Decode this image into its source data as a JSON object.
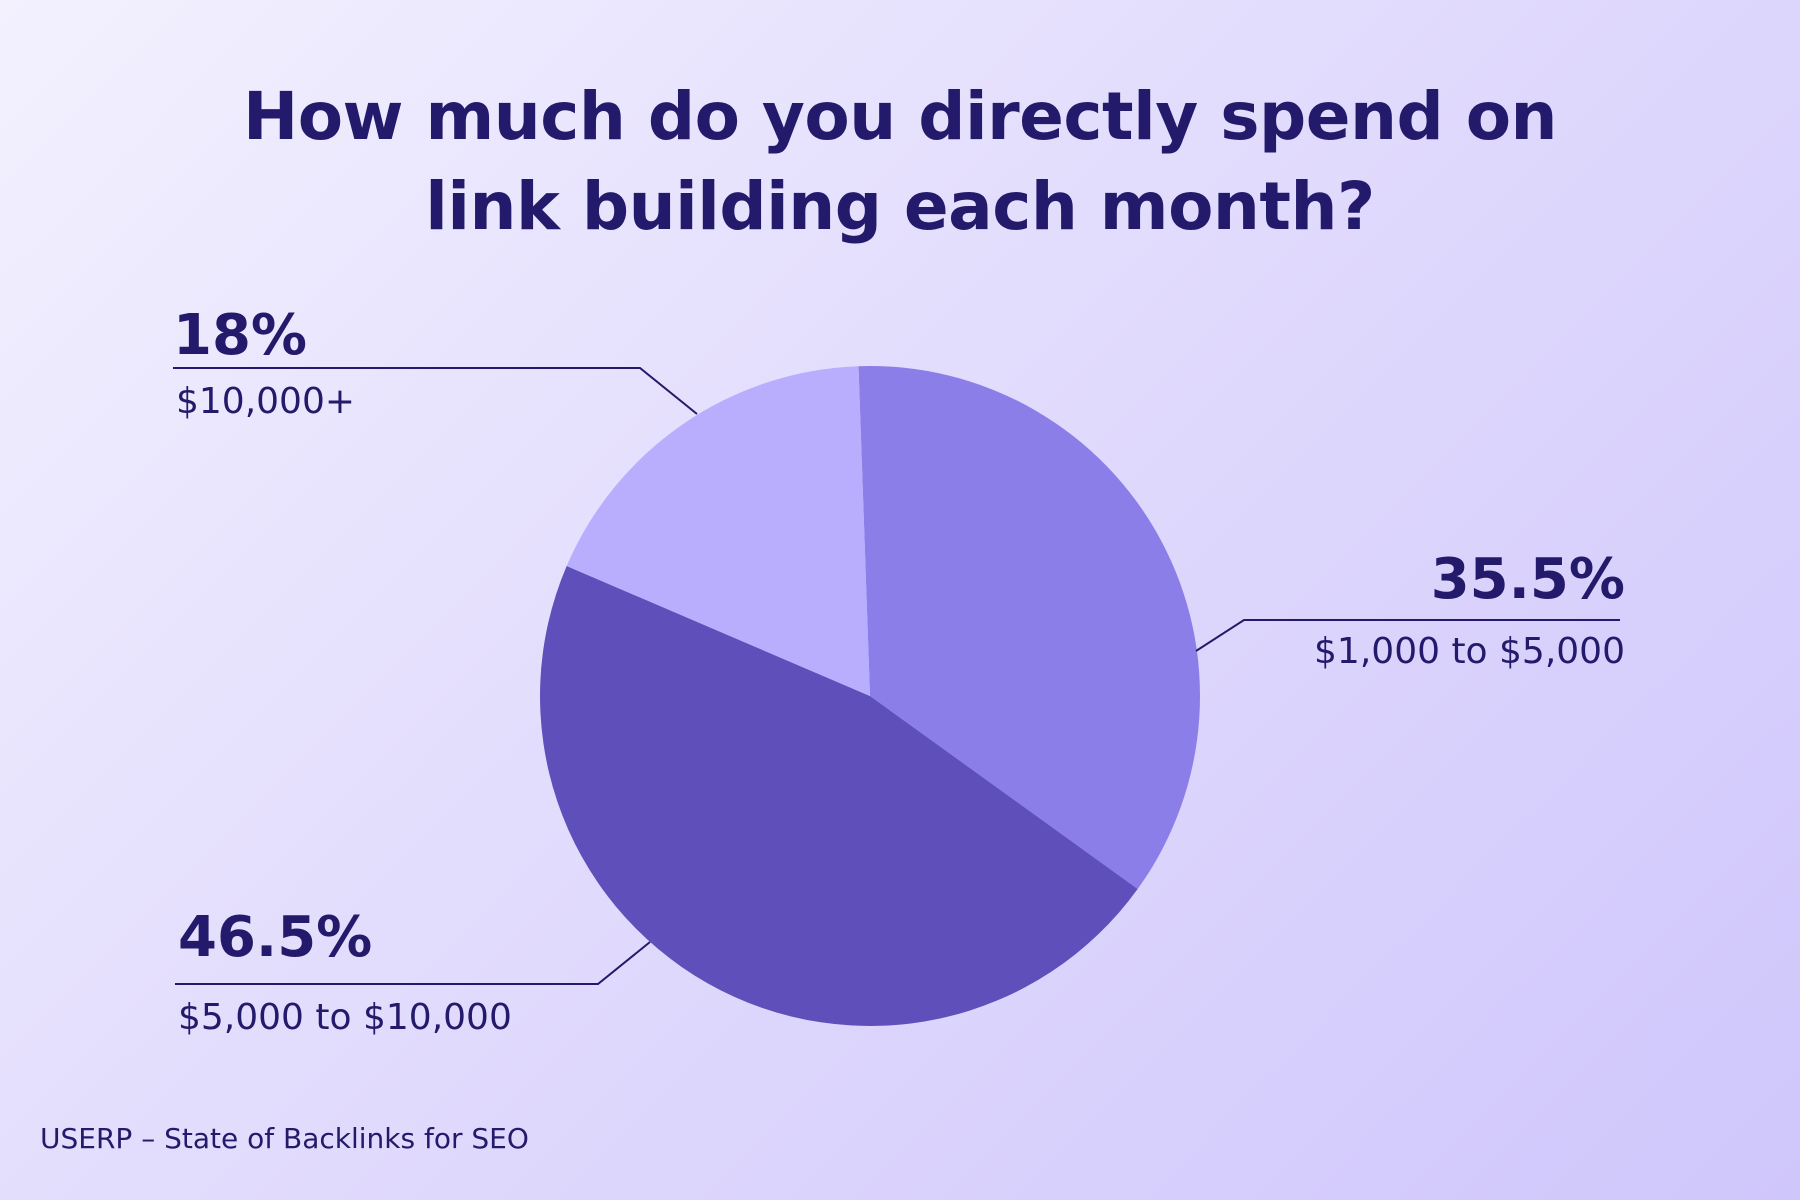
{
  "chart_data": {
    "type": "pie",
    "title_lines": [
      "How much do you directly spend on",
      "link building each month?"
    ],
    "slices": [
      {
        "label": "$1,000 to $5,000",
        "percent_label": "35.5%",
        "value": 35.5,
        "color": "#8c7ee9"
      },
      {
        "label": "$5,000 to $10,000",
        "percent_label": "46.5%",
        "value": 46.5,
        "color": "#5e4fba"
      },
      {
        "label": "$10,000+",
        "percent_label": "18%",
        "value": 18,
        "color": "#b8aefd"
      }
    ]
  },
  "footer": {
    "source": "USERP – State of Backlinks for SEO"
  },
  "colors": {
    "text": "#241a6b",
    "leader_line": "#241a6b"
  }
}
